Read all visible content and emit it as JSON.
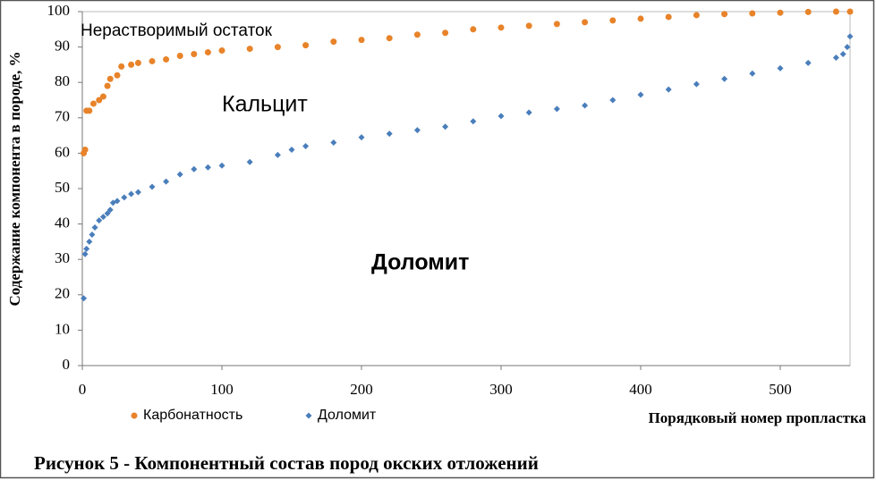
{
  "chart_data": {
    "type": "scatter",
    "ylabel": "Содержание компонента в породе, %",
    "xlabel": "Порядковый номер пропластка",
    "caption": "Рисунок 5 - Компонентный состав пород окских отложений",
    "annotations": [
      "Нерастворимый остаток",
      "Кальцит",
      "Доломит"
    ],
    "xlim": [
      0,
      550
    ],
    "xticks": [
      0,
      100,
      200,
      300,
      400,
      500
    ],
    "ylim": [
      0,
      100
    ],
    "yticks": [
      0,
      10,
      20,
      30,
      40,
      50,
      60,
      70,
      80,
      90,
      100
    ],
    "legend": "bottom-left",
    "series": [
      {
        "name": "Карбонатность",
        "color": "#e8832a",
        "marker": "circle",
        "x": [
          1,
          2,
          3,
          5,
          8,
          12,
          15,
          18,
          20,
          25,
          28,
          35,
          40,
          50,
          60,
          70,
          80,
          90,
          100,
          120,
          140,
          160,
          180,
          200,
          220,
          240,
          260,
          280,
          300,
          320,
          340,
          360,
          380,
          400,
          420,
          440,
          460,
          480,
          500,
          520,
          540,
          550
        ],
        "values": [
          60,
          61,
          72,
          72,
          74,
          75,
          76,
          79,
          81,
          82,
          84.5,
          85,
          85.5,
          86,
          86.5,
          87.5,
          88,
          88.5,
          89,
          89.5,
          90,
          90.5,
          91.5,
          92,
          92.5,
          93.5,
          94,
          95,
          95.5,
          96,
          96.5,
          97,
          97.5,
          98,
          98.5,
          99,
          99.3,
          99.5,
          99.7,
          99.9,
          100,
          100
        ]
      },
      {
        "name": "Доломит",
        "color": "#4a7ebb",
        "marker": "diamond",
        "x": [
          1,
          2,
          3,
          5,
          7,
          9,
          12,
          15,
          18,
          20,
          22,
          25,
          30,
          35,
          40,
          50,
          60,
          70,
          80,
          90,
          100,
          120,
          140,
          150,
          160,
          180,
          200,
          220,
          240,
          260,
          280,
          300,
          320,
          340,
          360,
          380,
          400,
          420,
          440,
          460,
          480,
          500,
          520,
          540,
          545,
          548,
          550
        ],
        "values": [
          19,
          31.5,
          33,
          35,
          37,
          39,
          41,
          42,
          43,
          44,
          46,
          46.5,
          47.5,
          48.5,
          49,
          50.5,
          52,
          54,
          55.5,
          56,
          56.5,
          57.5,
          59.5,
          61,
          62,
          63,
          64.5,
          65.5,
          66.5,
          67.5,
          69,
          70.5,
          71.5,
          72.5,
          73.5,
          75,
          76.5,
          78,
          79.5,
          81,
          82.5,
          84,
          85.5,
          87,
          88,
          90,
          93
        ]
      }
    ]
  }
}
